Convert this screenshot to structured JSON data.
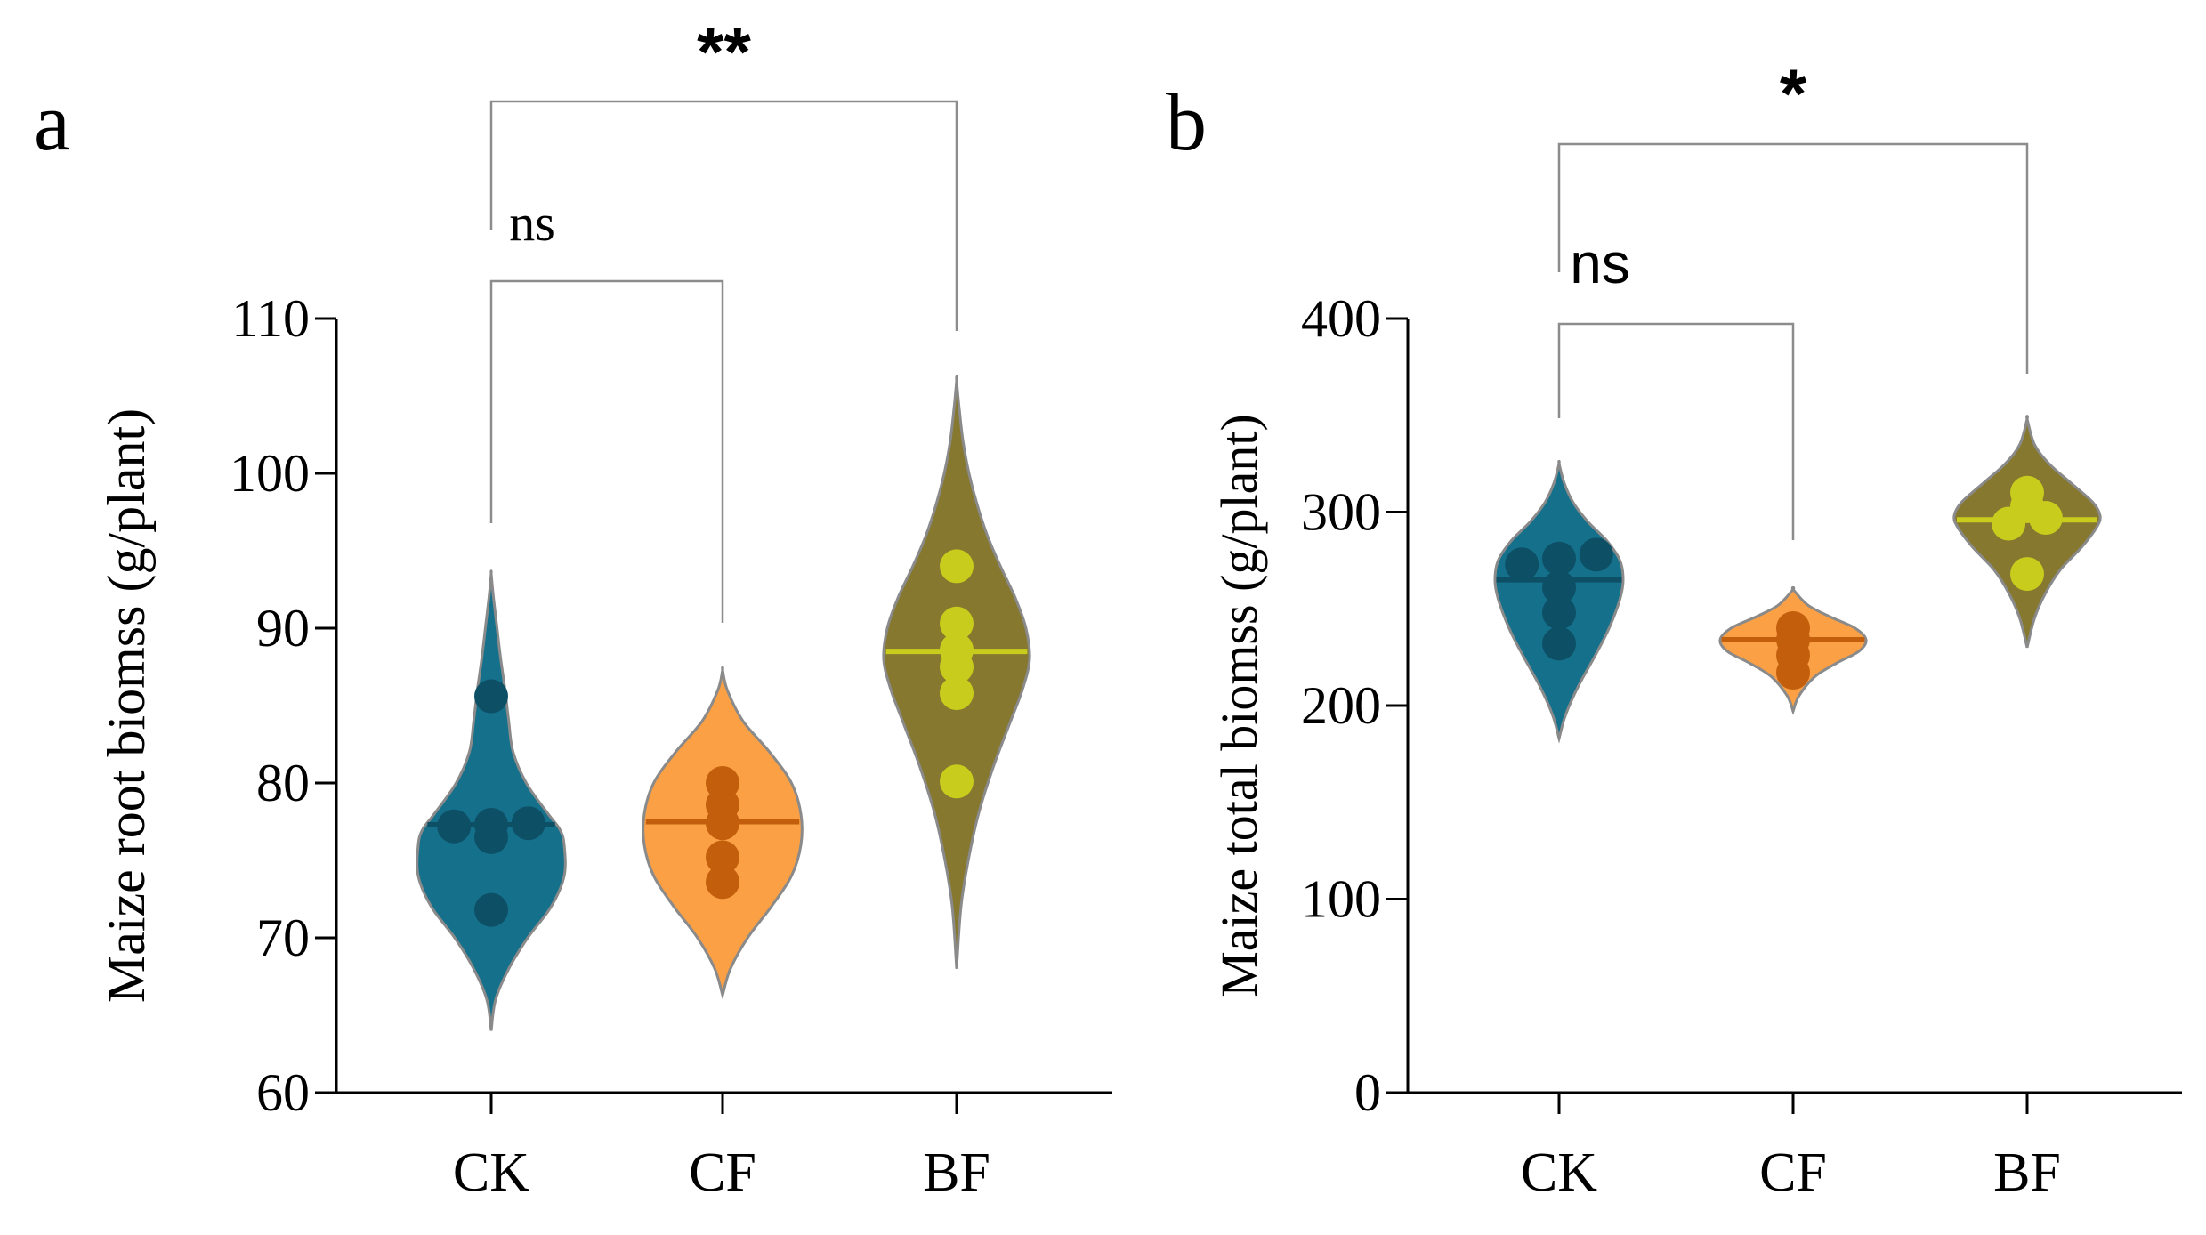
{
  "chart_data": [
    {
      "panel_label": "a",
      "type": "violin",
      "title": "",
      "xlabel": "",
      "ylabel": "Maize root biomss (g/plant)",
      "ylim": [
        60,
        110
      ],
      "yticks": [
        "60",
        "70",
        "80",
        "90",
        "100",
        "110"
      ],
      "categories": [
        "CK",
        "CF",
        "BF"
      ],
      "series": [
        {
          "name": "CK",
          "median": 77.3,
          "points": [
            85.6,
            77.4,
            77.2,
            77.3,
            76.5,
            71.8
          ],
          "violin": {
            "min": 64,
            "max": 93.5,
            "profile": [
              [
                64,
                0
              ],
              [
                66,
                0.06
              ],
              [
                68,
                0.24
              ],
              [
                70,
                0.5
              ],
              [
                72,
                0.82
              ],
              [
                74,
                1.0
              ],
              [
                76,
                1.0
              ],
              [
                77,
                0.94
              ],
              [
                78,
                0.78
              ],
              [
                80,
                0.48
              ],
              [
                82,
                0.3
              ],
              [
                84,
                0.24
              ],
              [
                86,
                0.19
              ],
              [
                88,
                0.13
              ],
              [
                90,
                0.08
              ],
              [
                92,
                0.03
              ],
              [
                93.5,
                0
              ]
            ]
          }
        },
        {
          "name": "CF",
          "median": 77.5,
          "points": [
            80.0,
            78.6,
            77.4,
            75.2,
            73.6
          ],
          "violin": {
            "min": 66.3,
            "max": 87.3,
            "profile": [
              [
                66.3,
                0
              ],
              [
                68,
                0.1
              ],
              [
                70,
                0.32
              ],
              [
                72,
                0.62
              ],
              [
                74,
                0.88
              ],
              [
                76,
                1.0
              ],
              [
                78,
                1.0
              ],
              [
                80,
                0.88
              ],
              [
                82,
                0.6
              ],
              [
                84,
                0.26
              ],
              [
                86,
                0.06
              ],
              [
                87.3,
                0
              ]
            ]
          }
        },
        {
          "name": "BF",
          "median": 88.5,
          "points": [
            94.0,
            90.3,
            88.6,
            87.5,
            85.8,
            80.1
          ],
          "violin": {
            "min": 68,
            "max": 106,
            "profile": [
              [
                68,
                0
              ],
              [
                72,
                0.06
              ],
              [
                75,
                0.16
              ],
              [
                78,
                0.3
              ],
              [
                81,
                0.5
              ],
              [
                84,
                0.74
              ],
              [
                86,
                0.9
              ],
              [
                88,
                1.0
              ],
              [
                90,
                0.95
              ],
              [
                92,
                0.8
              ],
              [
                94,
                0.6
              ],
              [
                96,
                0.42
              ],
              [
                98,
                0.28
              ],
              [
                100,
                0.17
              ],
              [
                102,
                0.09
              ],
              [
                104,
                0.04
              ],
              [
                106,
                0
              ]
            ]
          }
        }
      ],
      "comparisons": [
        {
          "from": "CK",
          "to": "CF",
          "label": "ns"
        },
        {
          "from": "CK",
          "to": "BF",
          "label": "**"
        }
      ]
    },
    {
      "panel_label": "b",
      "type": "violin",
      "title": "",
      "xlabel": "",
      "ylabel": "Maize total biomss (g/plant)",
      "ylim": [
        0,
        400
      ],
      "yticks": [
        "0",
        "100",
        "200",
        "300",
        "400"
      ],
      "categories": [
        "CK",
        "CF",
        "BF"
      ],
      "series": [
        {
          "name": "CK",
          "median": 265,
          "points": [
            273,
            261,
            276,
            278,
            248,
            232
          ],
          "violin": {
            "min": 183,
            "max": 325,
            "profile": [
              [
                183,
                0
              ],
              [
                195,
                0.1
              ],
              [
                210,
                0.3
              ],
              [
                225,
                0.55
              ],
              [
                240,
                0.78
              ],
              [
                255,
                0.95
              ],
              [
                265,
                1.0
              ],
              [
                275,
                0.95
              ],
              [
                285,
                0.75
              ],
              [
                295,
                0.45
              ],
              [
                305,
                0.22
              ],
              [
                315,
                0.08
              ],
              [
                325,
                0
              ]
            ]
          }
        },
        {
          "name": "CF",
          "median": 234,
          "points": [
            240,
            234,
            226,
            217
          ],
          "violin": {
            "min": 197,
            "max": 260,
            "profile": [
              [
                197,
                0
              ],
              [
                205,
                0.08
              ],
              [
                215,
                0.3
              ],
              [
                222,
                0.6
              ],
              [
                228,
                0.9
              ],
              [
                234,
                1.0
              ],
              [
                240,
                0.85
              ],
              [
                246,
                0.5
              ],
              [
                252,
                0.2
              ],
              [
                260,
                0
              ]
            ]
          }
        },
        {
          "name": "BF",
          "median": 296,
          "points": [
            310,
            303,
            297,
            294,
            268
          ],
          "violin": {
            "min": 230,
            "max": 348,
            "profile": [
              [
                230,
                0
              ],
              [
                245,
                0.1
              ],
              [
                258,
                0.25
              ],
              [
                270,
                0.45
              ],
              [
                282,
                0.75
              ],
              [
                292,
                0.95
              ],
              [
                298,
                1.0
              ],
              [
                305,
                0.9
              ],
              [
                315,
                0.6
              ],
              [
                325,
                0.3
              ],
              [
                335,
                0.1
              ],
              [
                348,
                0
              ]
            ]
          }
        }
      ],
      "comparisons": [
        {
          "from": "CK",
          "to": "CF",
          "label": "ns"
        },
        {
          "from": "CK",
          "to": "BF",
          "label": "*"
        }
      ]
    }
  ],
  "colors": {
    "CK": {
      "fill": "#15708c",
      "point": "#0d4f65",
      "line": "#0d4f65"
    },
    "CF": {
      "fill": "#fba045",
      "point": "#c25e0c",
      "line": "#c25e0c"
    },
    "BF": {
      "fill": "#86782e",
      "point": "#c8cc1c",
      "line": "#c8cc1c"
    },
    "axis": "#000000",
    "violin_edge": "#8a8a8a",
    "bracket": "#8c8c8c"
  }
}
